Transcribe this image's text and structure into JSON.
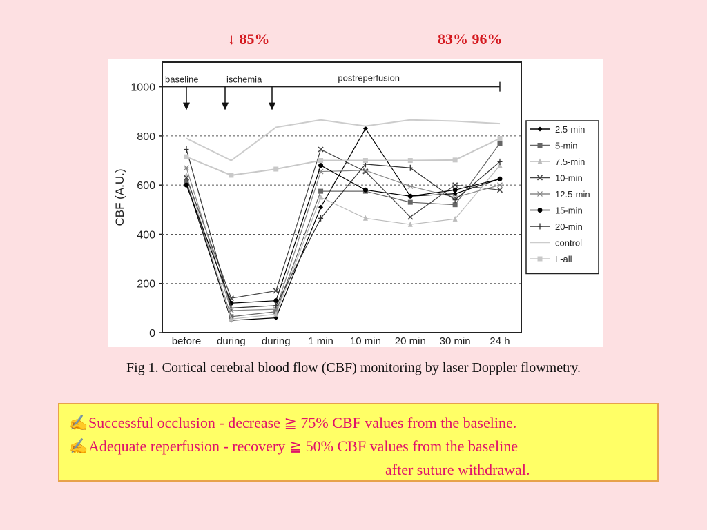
{
  "header": {
    "left": "↓ 85%",
    "right": "83%  96%"
  },
  "chart_data": {
    "type": "line",
    "ylabel": "CBF (A.U.)",
    "xlabel": "",
    "ylim": [
      0,
      1100
    ],
    "yticks": [
      0,
      200,
      400,
      600,
      800,
      1000
    ],
    "categories": [
      "before",
      "during",
      "during",
      "1 min",
      "10 min",
      "20 min",
      "30 min",
      "24 h"
    ],
    "phases": [
      {
        "label": "baseline",
        "arrow_at": 0
      },
      {
        "label": "ischemia",
        "arrow_at": [
          1,
          2
        ]
      },
      {
        "label": "postreperfusion",
        "span": [
          3,
          7
        ]
      }
    ],
    "grid": "dashed horizontal at 200, 400, 600, 800",
    "legend_position": "right",
    "series": [
      {
        "name": "2.5-min",
        "marker": "diamond",
        "color": "#000000",
        "values": [
          610,
          50,
          60,
          510,
          830,
          555,
          565,
          625
        ]
      },
      {
        "name": "5-min",
        "marker": "square",
        "color": "#666666",
        "values": [
          615,
          65,
          85,
          575,
          575,
          530,
          520,
          770
        ]
      },
      {
        "name": "7.5-min",
        "marker": "triangle",
        "color": "#bbbbbb",
        "values": [
          640,
          55,
          75,
          550,
          465,
          440,
          462,
          680
        ]
      },
      {
        "name": "10-min",
        "marker": "x",
        "color": "#444444",
        "values": [
          630,
          140,
          170,
          745,
          655,
          470,
          600,
          580
        ]
      },
      {
        "name": "12.5-min",
        "marker": "star",
        "color": "#888888",
        "values": [
          670,
          90,
          95,
          655,
          660,
          595,
          550,
          600
        ]
      },
      {
        "name": "15-min",
        "marker": "circle",
        "color": "#000000",
        "values": [
          600,
          120,
          130,
          680,
          580,
          555,
          580,
          625
        ]
      },
      {
        "name": "20-min",
        "marker": "plus",
        "color": "#333333",
        "values": [
          745,
          100,
          110,
          465,
          685,
          670,
          540,
          695
        ]
      },
      {
        "name": "control",
        "marker": "dash",
        "color": "#cccccc",
        "values": [
          790,
          700,
          835,
          865,
          840,
          865,
          860,
          850
        ]
      },
      {
        "name": "L-all",
        "marker": "square",
        "color": "#c8c8c8",
        "values": [
          715,
          640,
          665,
          700,
          700,
          700,
          702,
          790
        ]
      }
    ]
  },
  "caption": "Fig 1. Cortical cerebral blood flow (CBF) monitoring by laser Doppler flowmetry.",
  "notes": {
    "icon": "✍",
    "line1": "Successful occlusion - decrease ≧ 75% CBF values from the baseline.",
    "line2": "Adequate reperfusion - recovery ≧ 50% CBF values from the baseline",
    "line3": "after  suture withdrawal."
  },
  "colors": {
    "background": "#fde0e2",
    "headline": "#d4181e",
    "note_text": "#e0126a",
    "note_bg": "#ffff66",
    "note_border": "#e7a24b"
  }
}
